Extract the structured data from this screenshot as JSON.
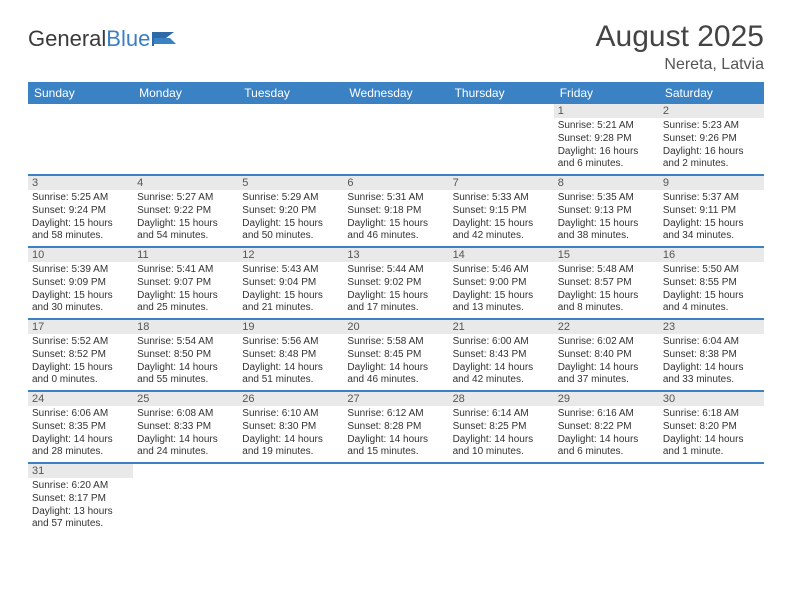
{
  "logo": {
    "part1": "General",
    "part2": "Blue"
  },
  "header": {
    "month": "August 2025",
    "location": "Nereta, Latvia"
  },
  "colors": {
    "header_bg": "#3a82c4",
    "header_text": "#ffffff",
    "daynum_bg": "#e9e9e9",
    "row_divider": "#3a82c4",
    "text": "#333333"
  },
  "daysOfWeek": [
    "Sunday",
    "Monday",
    "Tuesday",
    "Wednesday",
    "Thursday",
    "Friday",
    "Saturday"
  ],
  "weeks": [
    [
      null,
      null,
      null,
      null,
      null,
      {
        "n": "1",
        "sr": "Sunrise: 5:21 AM",
        "ss": "Sunset: 9:28 PM",
        "d1": "Daylight: 16 hours",
        "d2": "and 6 minutes."
      },
      {
        "n": "2",
        "sr": "Sunrise: 5:23 AM",
        "ss": "Sunset: 9:26 PM",
        "d1": "Daylight: 16 hours",
        "d2": "and 2 minutes."
      }
    ],
    [
      {
        "n": "3",
        "sr": "Sunrise: 5:25 AM",
        "ss": "Sunset: 9:24 PM",
        "d1": "Daylight: 15 hours",
        "d2": "and 58 minutes."
      },
      {
        "n": "4",
        "sr": "Sunrise: 5:27 AM",
        "ss": "Sunset: 9:22 PM",
        "d1": "Daylight: 15 hours",
        "d2": "and 54 minutes."
      },
      {
        "n": "5",
        "sr": "Sunrise: 5:29 AM",
        "ss": "Sunset: 9:20 PM",
        "d1": "Daylight: 15 hours",
        "d2": "and 50 minutes."
      },
      {
        "n": "6",
        "sr": "Sunrise: 5:31 AM",
        "ss": "Sunset: 9:18 PM",
        "d1": "Daylight: 15 hours",
        "d2": "and 46 minutes."
      },
      {
        "n": "7",
        "sr": "Sunrise: 5:33 AM",
        "ss": "Sunset: 9:15 PM",
        "d1": "Daylight: 15 hours",
        "d2": "and 42 minutes."
      },
      {
        "n": "8",
        "sr": "Sunrise: 5:35 AM",
        "ss": "Sunset: 9:13 PM",
        "d1": "Daylight: 15 hours",
        "d2": "and 38 minutes."
      },
      {
        "n": "9",
        "sr": "Sunrise: 5:37 AM",
        "ss": "Sunset: 9:11 PM",
        "d1": "Daylight: 15 hours",
        "d2": "and 34 minutes."
      }
    ],
    [
      {
        "n": "10",
        "sr": "Sunrise: 5:39 AM",
        "ss": "Sunset: 9:09 PM",
        "d1": "Daylight: 15 hours",
        "d2": "and 30 minutes."
      },
      {
        "n": "11",
        "sr": "Sunrise: 5:41 AM",
        "ss": "Sunset: 9:07 PM",
        "d1": "Daylight: 15 hours",
        "d2": "and 25 minutes."
      },
      {
        "n": "12",
        "sr": "Sunrise: 5:43 AM",
        "ss": "Sunset: 9:04 PM",
        "d1": "Daylight: 15 hours",
        "d2": "and 21 minutes."
      },
      {
        "n": "13",
        "sr": "Sunrise: 5:44 AM",
        "ss": "Sunset: 9:02 PM",
        "d1": "Daylight: 15 hours",
        "d2": "and 17 minutes."
      },
      {
        "n": "14",
        "sr": "Sunrise: 5:46 AM",
        "ss": "Sunset: 9:00 PM",
        "d1": "Daylight: 15 hours",
        "d2": "and 13 minutes."
      },
      {
        "n": "15",
        "sr": "Sunrise: 5:48 AM",
        "ss": "Sunset: 8:57 PM",
        "d1": "Daylight: 15 hours",
        "d2": "and 8 minutes."
      },
      {
        "n": "16",
        "sr": "Sunrise: 5:50 AM",
        "ss": "Sunset: 8:55 PM",
        "d1": "Daylight: 15 hours",
        "d2": "and 4 minutes."
      }
    ],
    [
      {
        "n": "17",
        "sr": "Sunrise: 5:52 AM",
        "ss": "Sunset: 8:52 PM",
        "d1": "Daylight: 15 hours",
        "d2": "and 0 minutes."
      },
      {
        "n": "18",
        "sr": "Sunrise: 5:54 AM",
        "ss": "Sunset: 8:50 PM",
        "d1": "Daylight: 14 hours",
        "d2": "and 55 minutes."
      },
      {
        "n": "19",
        "sr": "Sunrise: 5:56 AM",
        "ss": "Sunset: 8:48 PM",
        "d1": "Daylight: 14 hours",
        "d2": "and 51 minutes."
      },
      {
        "n": "20",
        "sr": "Sunrise: 5:58 AM",
        "ss": "Sunset: 8:45 PM",
        "d1": "Daylight: 14 hours",
        "d2": "and 46 minutes."
      },
      {
        "n": "21",
        "sr": "Sunrise: 6:00 AM",
        "ss": "Sunset: 8:43 PM",
        "d1": "Daylight: 14 hours",
        "d2": "and 42 minutes."
      },
      {
        "n": "22",
        "sr": "Sunrise: 6:02 AM",
        "ss": "Sunset: 8:40 PM",
        "d1": "Daylight: 14 hours",
        "d2": "and 37 minutes."
      },
      {
        "n": "23",
        "sr": "Sunrise: 6:04 AM",
        "ss": "Sunset: 8:38 PM",
        "d1": "Daylight: 14 hours",
        "d2": "and 33 minutes."
      }
    ],
    [
      {
        "n": "24",
        "sr": "Sunrise: 6:06 AM",
        "ss": "Sunset: 8:35 PM",
        "d1": "Daylight: 14 hours",
        "d2": "and 28 minutes."
      },
      {
        "n": "25",
        "sr": "Sunrise: 6:08 AM",
        "ss": "Sunset: 8:33 PM",
        "d1": "Daylight: 14 hours",
        "d2": "and 24 minutes."
      },
      {
        "n": "26",
        "sr": "Sunrise: 6:10 AM",
        "ss": "Sunset: 8:30 PM",
        "d1": "Daylight: 14 hours",
        "d2": "and 19 minutes."
      },
      {
        "n": "27",
        "sr": "Sunrise: 6:12 AM",
        "ss": "Sunset: 8:28 PM",
        "d1": "Daylight: 14 hours",
        "d2": "and 15 minutes."
      },
      {
        "n": "28",
        "sr": "Sunrise: 6:14 AM",
        "ss": "Sunset: 8:25 PM",
        "d1": "Daylight: 14 hours",
        "d2": "and 10 minutes."
      },
      {
        "n": "29",
        "sr": "Sunrise: 6:16 AM",
        "ss": "Sunset: 8:22 PM",
        "d1": "Daylight: 14 hours",
        "d2": "and 6 minutes."
      },
      {
        "n": "30",
        "sr": "Sunrise: 6:18 AM",
        "ss": "Sunset: 8:20 PM",
        "d1": "Daylight: 14 hours",
        "d2": "and 1 minute."
      }
    ],
    [
      {
        "n": "31",
        "sr": "Sunrise: 6:20 AM",
        "ss": "Sunset: 8:17 PM",
        "d1": "Daylight: 13 hours",
        "d2": "and 57 minutes."
      },
      null,
      null,
      null,
      null,
      null,
      null
    ]
  ]
}
